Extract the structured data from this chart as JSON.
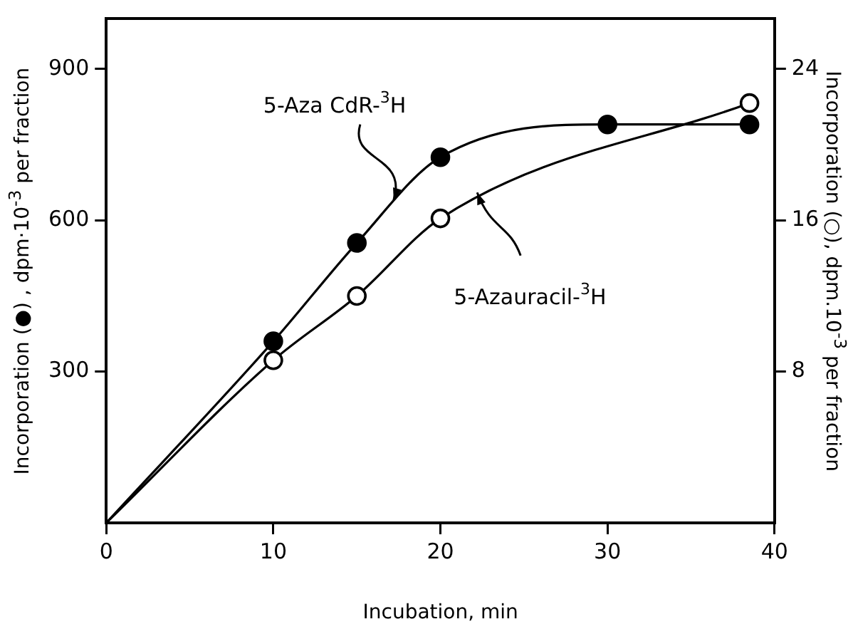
{
  "chart_data": {
    "type": "line",
    "xlabel": "Incubation, min",
    "ylabel": "Incorporation (●) , dpm·10$^{-3}$ per fraction",
    "y2label": "Incorporation (○), dpm.10$^{-3}$ per fraction",
    "xlim": [
      0,
      40
    ],
    "xticks": [
      0,
      10,
      20,
      30,
      40
    ],
    "ylim": [
      0,
      1000
    ],
    "yticks": [
      300,
      600,
      900
    ],
    "y2lim": [
      0,
      26.67
    ],
    "y2ticks": [
      8,
      16,
      24
    ],
    "grid": false,
    "legend": false,
    "marker": "circle",
    "line_style": "solid",
    "series": [
      {
        "name": "5-Aza CdR-$^{3}$H",
        "color": "#000000",
        "x": [
          0,
          10,
          15,
          20,
          30,
          38.5
        ],
        "values": [
          0,
          360,
          555,
          725,
          790,
          790
        ]
      },
      {
        "name": "5-Azauracil-$^{3}$H",
        "color": "#000000",
        "axis": "y2",
        "x": [
          0,
          10,
          15,
          20,
          38.5
        ],
        "values": [
          0,
          8.6,
          12.0,
          16.1,
          22.2
        ]
      }
    ]
  }
}
